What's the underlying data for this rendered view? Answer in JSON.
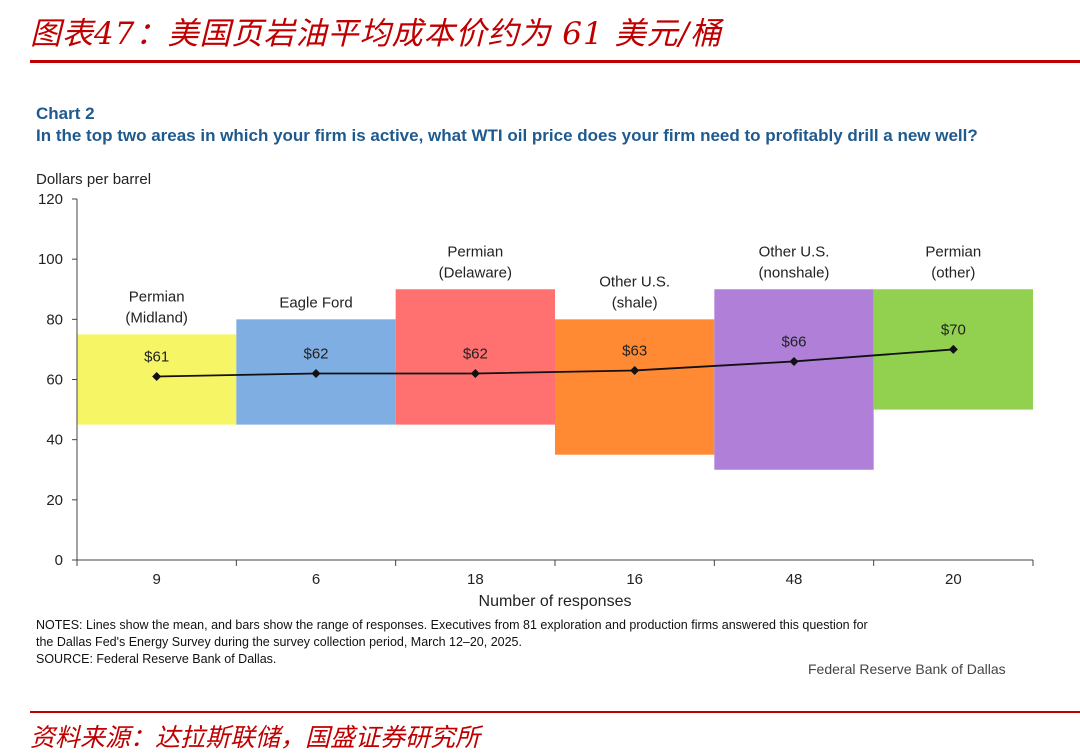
{
  "header": {
    "title": "图表47：美国页岩油平均成本价约为 61 美元/桶"
  },
  "footer": {
    "source": "资料来源：达拉斯联储，国盛证券研究所"
  },
  "chart_data": {
    "type": "bar",
    "label": "Chart 2",
    "title": "In the top two areas in which your firm is active, what WTI oil price does your firm need to profitably drill a new well?",
    "ylabel": "Dollars per barrel",
    "xlabel": "Number of responses",
    "ylim": [
      0,
      120
    ],
    "yticks": [
      0,
      20,
      40,
      60,
      80,
      100,
      120
    ],
    "grid": false,
    "legend": "none",
    "categories": [
      {
        "name": [
          "Permian",
          "(Midland)"
        ],
        "responses": "9",
        "low": 45,
        "high": 75,
        "mean": 61,
        "mean_label": "$61",
        "color": "#f5f565"
      },
      {
        "name": [
          "Eagle Ford"
        ],
        "responses": "6",
        "low": 45,
        "high": 80,
        "mean": 62,
        "mean_label": "$62",
        "color": "#7eaee2"
      },
      {
        "name": [
          "Permian",
          "(Delaware)"
        ],
        "responses": "18",
        "low": 45,
        "high": 90,
        "mean": 62,
        "mean_label": "$62",
        "color": "#ff7070"
      },
      {
        "name": [
          "Other U.S.",
          "(shale)"
        ],
        "responses": "16",
        "low": 35,
        "high": 80,
        "mean": 63,
        "mean_label": "$63",
        "color": "#ff8a33"
      },
      {
        "name": [
          "Other U.S.",
          "(nonshale)"
        ],
        "responses": "48",
        "low": 30,
        "high": 90,
        "mean": 66,
        "mean_label": "$66",
        "color": "#b07fd8"
      },
      {
        "name": [
          "Permian",
          "(other)"
        ],
        "responses": "20",
        "low": 50,
        "high": 90,
        "mean": 70,
        "mean_label": "$70",
        "color": "#92d050"
      }
    ]
  },
  "notes": {
    "line1": "NOTES: Lines show the mean, and bars show the range of responses. Executives from 81 exploration and production firms answered this question for",
    "line2": "the Dallas Fed's Energy Survey during the survey collection period, March 12–20, 2025.",
    "line3": "SOURCE: Federal Reserve Bank of Dallas."
  },
  "credit": "Federal Reserve Bank of Dallas"
}
